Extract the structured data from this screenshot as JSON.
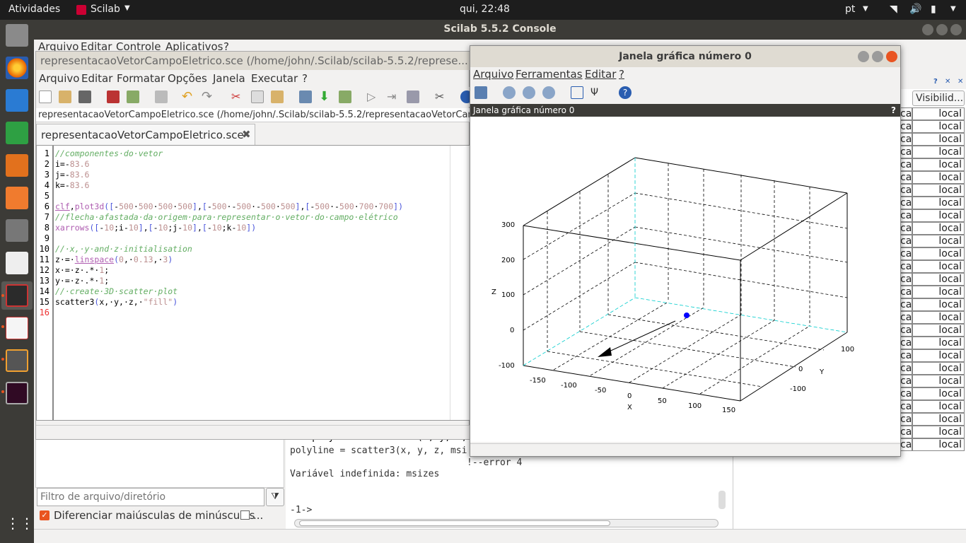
{
  "topbar": {
    "activities": "Atividades",
    "app": "Scilab",
    "clock": "qui, 22:48",
    "lang": "pt"
  },
  "console_window": {
    "title": "Scilab 5.5.2 Console",
    "menu": [
      "Arquivo",
      "Editar",
      "Controle",
      "Aplicativos",
      "?"
    ]
  },
  "editor": {
    "title": "representacaoVetorCampoEletrico.sce (/home/john/.Scilab/scilab-5.5.2/represe...",
    "menu": [
      "Arquivo",
      "Editar",
      "Formatar",
      "Opções",
      "Janela",
      "Executar",
      "?"
    ],
    "path": "representacaoVetorCampoEletrico.sce (/home/john/.Scilab/scilab-5.5.2/representacaoVetorCampoEletrico.sce",
    "tab": "representacaoVetorCampoEletrico.sce",
    "line_numbers": [
      "1",
      "2",
      "3",
      "4",
      "5",
      "6",
      "7",
      "8",
      "9",
      "10",
      "11",
      "12",
      "13",
      "14",
      "15",
      "16"
    ]
  },
  "graphic_window": {
    "title": "Janela gráfica número 0",
    "menu": [
      "Arquivo",
      "Ferramentas",
      "Editar",
      "?"
    ],
    "subtitle": "Janela gráfica número 0",
    "help": "?"
  },
  "chart_data": {
    "type": "scatter",
    "z_ticks": [
      "300",
      "200",
      "100",
      "0",
      "-100"
    ],
    "x_ticks": [
      "-150",
      "-100",
      "-50",
      "0",
      "50",
      "100",
      "150"
    ],
    "y_ticks": [
      "100",
      "0",
      "-100"
    ],
    "xlabel": "X",
    "ylabel": "Y",
    "zlabel": "Z",
    "points": [
      {
        "x": 0,
        "y": 0,
        "z": 0
      }
    ],
    "point_color": "#0000ff",
    "arrow": {
      "from": [
        -10,
        -10,
        -10
      ],
      "to": [
        -83.6,
        -83.6,
        -83.6
      ]
    }
  },
  "console": {
    "lines": [
      "-1->polyline = scatter3(x, y, z,",
      "polyline = scatter3(x, y, z, msi",
      "!--error 4",
      "Variável indefinida: msizes",
      "",
      "-1->"
    ]
  },
  "file_browser": {
    "filter_placeholder": "Filtro de arquivo/diretório",
    "case_label": "Diferenciar maiúsculas de minúsculas",
    "more": "..."
  },
  "variables": {
    "header": "Visibilid...",
    "left_prefix": "cal",
    "value": "local"
  }
}
